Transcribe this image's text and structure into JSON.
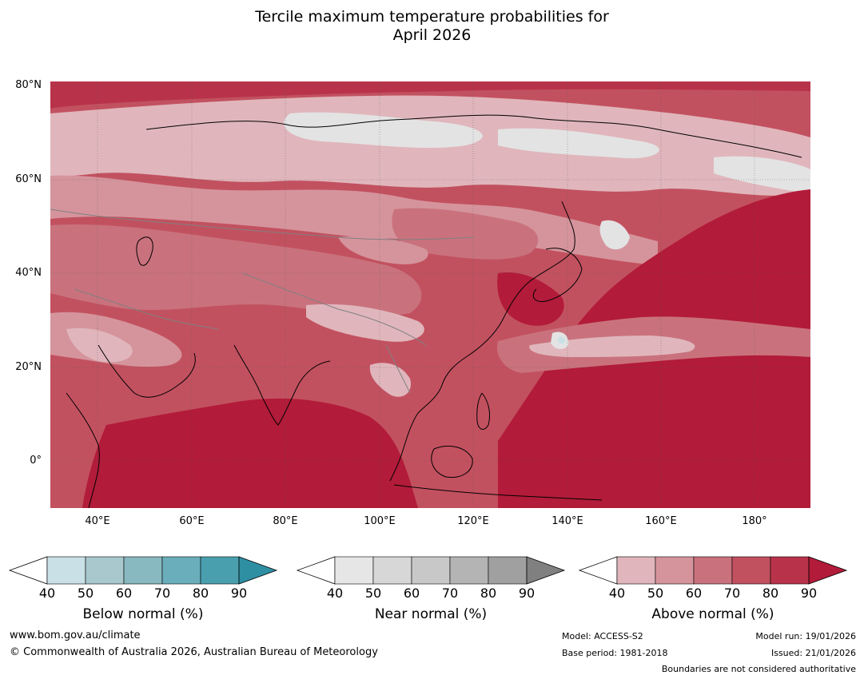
{
  "title_line1": "Tercile maximum temperature probabilities for",
  "title_line2": "April 2026",
  "map": {
    "lat_labels": [
      "80°N",
      "60°N",
      "40°N",
      "20°N",
      "0°"
    ],
    "lon_labels": [
      "40°E",
      "60°E",
      "80°E",
      "100°E",
      "120°E",
      "140°E",
      "160°E",
      "180°"
    ],
    "lon_range": [
      30,
      192
    ],
    "lat_range": [
      -10,
      80
    ],
    "colors": {
      "above_40_50": "#e0b6bc",
      "above_50_60": "#d5949c",
      "above_60_70": "#c9727d",
      "above_70_80": "#c2515f",
      "above_80_90": "#b8334a",
      "above_90": "#b21b39",
      "near_40_50": "#e3e3e3",
      "below_40_50": "#c8e0e6",
      "coastline": "#000000",
      "boundary": "#808080"
    }
  },
  "legends": [
    {
      "title": "Below normal (%)",
      "ticks": [
        "40",
        "50",
        "60",
        "70",
        "80",
        "90"
      ],
      "colors": [
        "#c8e0e6",
        "#a8c8ce",
        "#88b8c0",
        "#6aaebb",
        "#4a9fae",
        "#2e8fa3"
      ]
    },
    {
      "title": "Near normal (%)",
      "ticks": [
        "40",
        "50",
        "60",
        "70",
        "80",
        "90"
      ],
      "colors": [
        "#e6e6e6",
        "#d7d7d7",
        "#c8c8c8",
        "#b4b4b4",
        "#a0a0a0",
        "#808080"
      ]
    },
    {
      "title": "Above normal (%)",
      "ticks": [
        "40",
        "50",
        "60",
        "70",
        "80",
        "90"
      ],
      "colors": [
        "#e0b6bc",
        "#d5949c",
        "#c9727d",
        "#c2515f",
        "#b8334a",
        "#b21b39"
      ]
    }
  ],
  "footer": {
    "website": "www.bom.gov.au/climate",
    "copyright": "© Commonwealth of Australia 2026, Australian Bureau of Meteorology",
    "model": "Model: ACCESS-S2",
    "base_period": "Base period: 1981-2018",
    "model_run": "Model run: 19/01/2026",
    "issued": "Issued: 21/01/2026",
    "disclaimer": "Boundaries are not considered authoritative"
  }
}
